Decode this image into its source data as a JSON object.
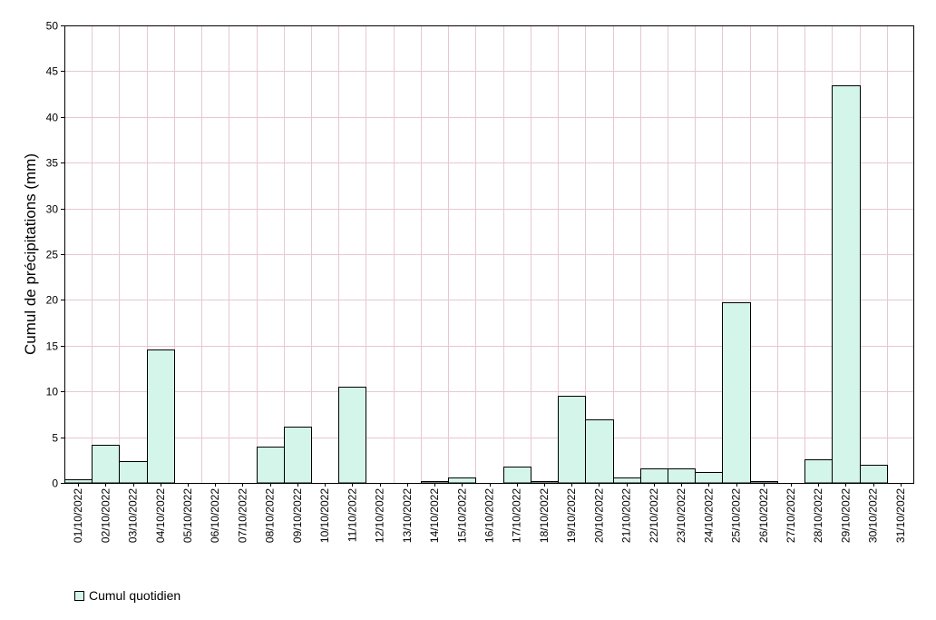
{
  "chart_data": {
    "type": "bar",
    "title": "",
    "xlabel": "",
    "ylabel": "Cumul de précipitations (mm)",
    "ylim": [
      0,
      50
    ],
    "yticks": [
      0,
      5,
      10,
      15,
      20,
      25,
      30,
      35,
      40,
      45,
      50
    ],
    "grid": true,
    "legend_position": "bottom-left",
    "colors": {
      "bar_fill": "#d4f5e9",
      "bar_stroke": "#000000",
      "grid": "#e6c8d4",
      "axis": "#000000"
    },
    "categories": [
      "01/10/2022",
      "02/10/2022",
      "03/10/2022",
      "04/10/2022",
      "05/10/2022",
      "06/10/2022",
      "07/10/2022",
      "08/10/2022",
      "09/10/2022",
      "10/10/2022",
      "11/10/2022",
      "12/10/2022",
      "13/10/2022",
      "14/10/2022",
      "15/10/2022",
      "16/10/2022",
      "17/10/2022",
      "18/10/2022",
      "19/10/2022",
      "20/10/2022",
      "21/10/2022",
      "22/10/2022",
      "23/10/2022",
      "24/10/2022",
      "25/10/2022",
      "26/10/2022",
      "27/10/2022",
      "28/10/2022",
      "29/10/2022",
      "30/10/2022",
      "31/10/2022"
    ],
    "series": [
      {
        "name": "Cumul quotidien",
        "values": [
          0.4,
          4.2,
          2.4,
          14.6,
          0,
          0,
          0,
          4.0,
          6.2,
          0,
          10.5,
          0,
          0,
          0.2,
          0.6,
          0,
          1.8,
          0.2,
          9.5,
          6.9,
          0.6,
          1.6,
          1.6,
          1.2,
          19.7,
          0.2,
          0,
          2.6,
          43.5,
          2.0,
          0
        ]
      }
    ]
  }
}
